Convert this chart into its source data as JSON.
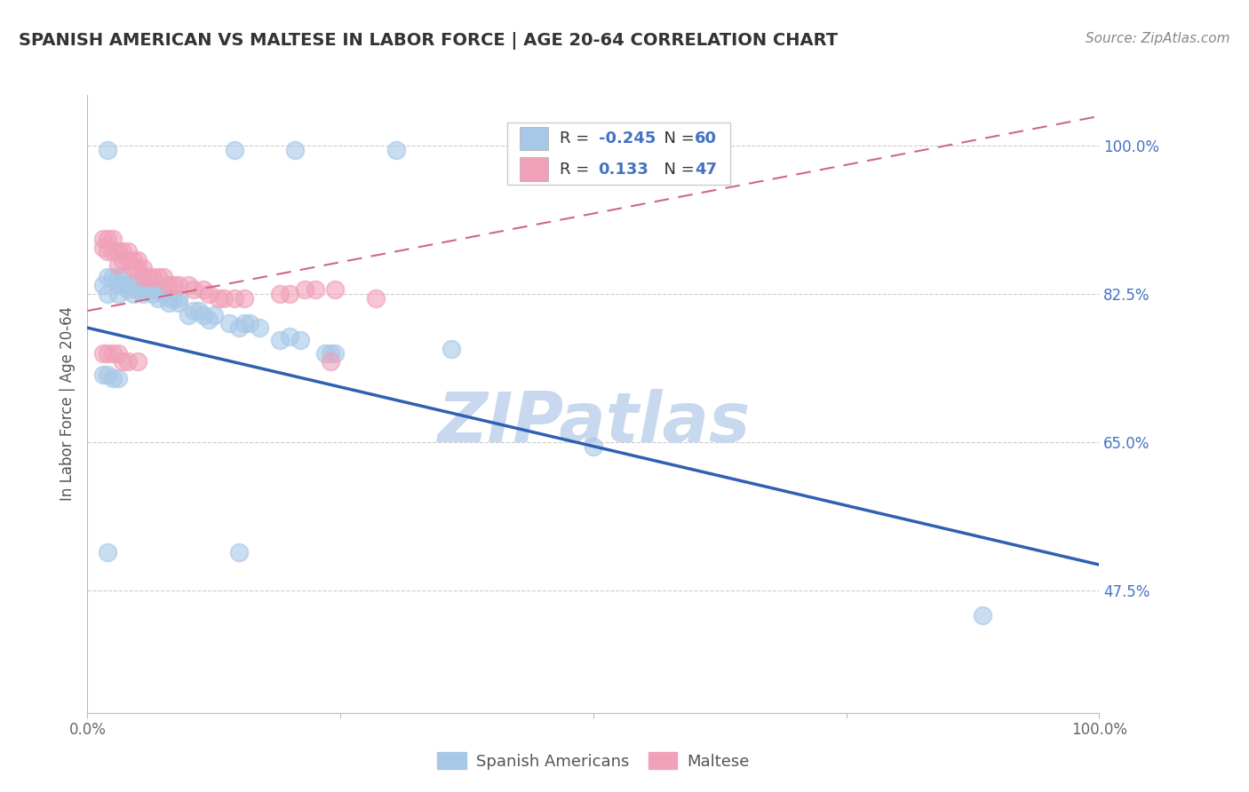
{
  "title": "SPANISH AMERICAN VS MALTESE IN LABOR FORCE | AGE 20-64 CORRELATION CHART",
  "source": "Source: ZipAtlas.com",
  "ylabel": "In Labor Force | Age 20-64",
  "xlim": [
    0.0,
    1.0
  ],
  "ylim": [
    0.33,
    1.06
  ],
  "yticks": [
    0.475,
    0.65,
    0.825,
    1.0
  ],
  "ytick_labels": [
    "47.5%",
    "65.0%",
    "82.5%",
    "100.0%"
  ],
  "blue_color": "#A8C8E8",
  "pink_color": "#F0A0B8",
  "blue_line_color": "#3060B0",
  "pink_line_color": "#D06880",
  "watermark": "ZIPatlas",
  "watermark_color": "#C8D8EF",
  "blue_line_x": [
    0.0,
    1.0
  ],
  "blue_line_y": [
    0.785,
    0.505
  ],
  "pink_line_x": [
    0.0,
    1.0
  ],
  "pink_line_y": [
    0.805,
    1.035
  ],
  "blue_x": [
    0.02,
    0.145,
    0.205,
    0.305,
    0.015,
    0.02,
    0.02,
    0.025,
    0.03,
    0.03,
    0.03,
    0.035,
    0.035,
    0.04,
    0.04,
    0.045,
    0.045,
    0.05,
    0.05,
    0.055,
    0.055,
    0.06,
    0.06,
    0.065,
    0.065,
    0.07,
    0.07,
    0.075,
    0.08,
    0.08,
    0.085,
    0.09,
    0.09,
    0.1,
    0.105,
    0.11,
    0.115,
    0.12,
    0.125,
    0.14,
    0.15,
    0.155,
    0.16,
    0.17,
    0.19,
    0.2,
    0.21,
    0.235,
    0.24,
    0.245,
    0.36,
    0.5,
    0.015,
    0.02,
    0.025,
    0.03,
    0.885,
    0.02,
    0.15
  ],
  "blue_y": [
    0.995,
    0.995,
    0.995,
    0.995,
    0.835,
    0.845,
    0.825,
    0.845,
    0.845,
    0.835,
    0.825,
    0.845,
    0.835,
    0.83,
    0.835,
    0.835,
    0.825,
    0.83,
    0.835,
    0.83,
    0.825,
    0.83,
    0.835,
    0.825,
    0.83,
    0.82,
    0.83,
    0.825,
    0.82,
    0.815,
    0.82,
    0.82,
    0.815,
    0.8,
    0.805,
    0.805,
    0.8,
    0.795,
    0.8,
    0.79,
    0.785,
    0.79,
    0.79,
    0.785,
    0.77,
    0.775,
    0.77,
    0.755,
    0.755,
    0.755,
    0.76,
    0.645,
    0.73,
    0.73,
    0.725,
    0.725,
    0.445,
    0.52,
    0.52
  ],
  "pink_x": [
    0.015,
    0.015,
    0.02,
    0.02,
    0.025,
    0.025,
    0.03,
    0.03,
    0.035,
    0.035,
    0.04,
    0.04,
    0.045,
    0.045,
    0.05,
    0.05,
    0.055,
    0.055,
    0.06,
    0.065,
    0.07,
    0.075,
    0.08,
    0.085,
    0.09,
    0.1,
    0.105,
    0.115,
    0.12,
    0.13,
    0.135,
    0.145,
    0.155,
    0.19,
    0.2,
    0.215,
    0.225,
    0.245,
    0.285,
    0.015,
    0.02,
    0.025,
    0.03,
    0.035,
    0.04,
    0.05,
    0.24
  ],
  "pink_y": [
    0.89,
    0.88,
    0.89,
    0.875,
    0.89,
    0.875,
    0.875,
    0.86,
    0.875,
    0.865,
    0.875,
    0.865,
    0.865,
    0.855,
    0.865,
    0.855,
    0.855,
    0.845,
    0.845,
    0.845,
    0.845,
    0.845,
    0.835,
    0.835,
    0.835,
    0.835,
    0.83,
    0.83,
    0.825,
    0.82,
    0.82,
    0.82,
    0.82,
    0.825,
    0.825,
    0.83,
    0.83,
    0.83,
    0.82,
    0.755,
    0.755,
    0.755,
    0.755,
    0.745,
    0.745,
    0.745,
    0.745
  ]
}
